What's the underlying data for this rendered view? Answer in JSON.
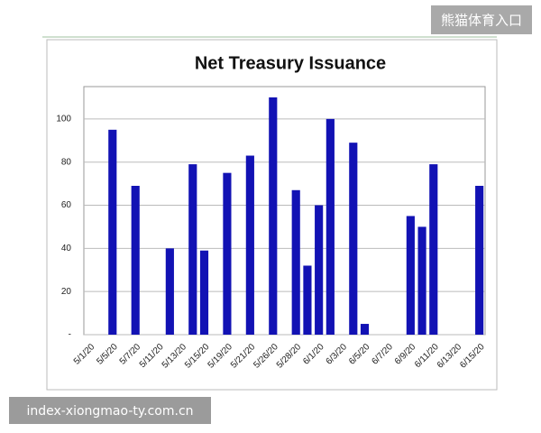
{
  "chart_data": {
    "type": "bar",
    "title": "Net Treasury Issuance",
    "categories": [
      "5/1/20",
      null,
      "5/5/20",
      null,
      "5/7/20",
      null,
      "5/11/20",
      null,
      "5/13/20",
      null,
      "5/15/20",
      null,
      "5/19/20",
      null,
      "5/21/20",
      null,
      "5/26/20",
      null,
      "5/28/20",
      null,
      "6/1/20",
      null,
      "6/3/20",
      null,
      "6/5/20",
      null,
      "6/7/20",
      null,
      "6/9/20",
      null,
      "6/11/20",
      null,
      "6/13/20",
      null,
      "6/15/20"
    ],
    "values": [
      null,
      null,
      95,
      null,
      69,
      null,
      null,
      40,
      null,
      79,
      39,
      null,
      75,
      null,
      83,
      null,
      110,
      null,
      67,
      32,
      60,
      100,
      null,
      89,
      5,
      null,
      null,
      null,
      55,
      50,
      79,
      null,
      null,
      null,
      69
    ],
    "color": "#1212b4",
    "ylim": [
      0,
      115
    ],
    "yticks": [
      {
        "value": 0,
        "label": "-"
      },
      20,
      40,
      60,
      80,
      100
    ],
    "grid": true
  },
  "watermarks": [
    "熊猫体育入口",
    "index-xiongmao-ty.com.cn"
  ]
}
